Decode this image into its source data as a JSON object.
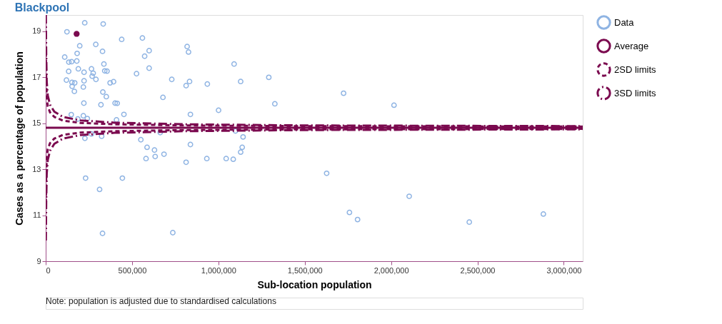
{
  "chart_data": {
    "type": "scatter",
    "title": "Blackpool",
    "xlabel": "Sub-location population",
    "ylabel": "Cases as a percentage of population",
    "annotations": [
      "Note: population is adjusted due to standardised calculations"
    ],
    "xlim": [
      0,
      3110000
    ],
    "ylim": [
      9,
      19.7
    ],
    "xticks": [
      0,
      {
        "value": 500000,
        "label": "500,000"
      },
      {
        "value": 1000000,
        "label": "1,000,000"
      },
      {
        "value": 1500000,
        "label": "1,500,000"
      },
      {
        "value": 2000000,
        "label": "2,000,000"
      },
      {
        "value": 2500000,
        "label": "2,500,000"
      },
      {
        "value": 3000000,
        "label": "3,000,000"
      }
    ],
    "yticks": [
      9,
      11,
      13,
      15,
      17,
      19
    ],
    "grid": false,
    "legend": "right",
    "series": [
      {
        "name": "Data",
        "type": "scatter",
        "marker": "circle",
        "color": "#8fb4e3",
        "x": [
          226000,
          333000,
          123000,
          440000,
          560000,
          197000,
          290000,
          329000,
          599000,
          819000,
          827000,
          182000,
          110000,
          573000,
          134000,
          150000,
          180000,
          337000,
          1091000,
          599000,
          189000,
          265000,
          133000,
          222000,
          275000,
          342000,
          355000,
          526000,
          269000,
          1292000,
          291000,
          120000,
          730000,
          222000,
          152000,
          168000,
          373000,
          393000,
          833000,
          1129000,
          936000,
          813000,
          153000,
          218000,
          166000,
          331000,
          351000,
          679000,
          221000,
          402000,
          414000,
          320000,
          1327000,
          1001000,
          148000,
          453000,
          838000,
          218000,
          241000,
          186000,
          410000,
          227000,
          265000,
          324000,
          663000,
          1099000,
          1143000,
          551000,
          838000,
          587000,
          1138000,
          630000,
          1129000,
          685000,
          634000,
          581000,
          933000,
          1045000,
          1086000,
          813000,
          1627000,
          231000,
          444000,
          312000,
          329000,
          736000,
          1725000,
          2017000,
          2105000,
          1759000,
          1806000,
          2453000,
          2882000
        ],
        "values": [
          19.36,
          19.31,
          18.97,
          18.64,
          18.7,
          18.36,
          18.42,
          18.12,
          18.15,
          18.33,
          18.09,
          18.03,
          17.87,
          17.91,
          17.65,
          17.67,
          17.7,
          17.57,
          17.57,
          17.39,
          17.36,
          17.36,
          17.25,
          17.21,
          17.17,
          17.27,
          17.26,
          17.15,
          17.04,
          16.99,
          16.9,
          16.87,
          16.9,
          16.84,
          16.77,
          16.75,
          16.75,
          16.8,
          16.81,
          16.81,
          16.7,
          16.63,
          16.6,
          16.57,
          16.38,
          16.35,
          16.15,
          16.12,
          15.87,
          15.87,
          15.86,
          15.8,
          15.84,
          15.56,
          15.37,
          15.38,
          15.38,
          15.32,
          15.2,
          15.18,
          15.14,
          14.34,
          14.53,
          14.43,
          14.59,
          14.66,
          14.4,
          14.28,
          14.07,
          13.95,
          13.95,
          13.83,
          13.74,
          13.65,
          13.55,
          13.46,
          13.46,
          13.46,
          13.43,
          13.3,
          12.82,
          12.61,
          12.61,
          12.12,
          10.21,
          10.24,
          16.3,
          15.78,
          11.82,
          11.12,
          10.81,
          10.7,
          11.05
        ]
      },
      {
        "type": "scatter",
        "marker": "circle",
        "color": "#7b0a4f",
        "x": [
          179000
        ],
        "values": [
          18.88
        ]
      },
      {
        "name": "Average",
        "type": "line",
        "color": "#7b0a4f",
        "line_style": "solid",
        "x": [
          0,
          3110000
        ],
        "values": [
          14.8,
          14.8
        ]
      },
      {
        "name": "2SD limits",
        "type": "line",
        "color": "#7b0a4f",
        "line_style": "dashed",
        "x": [
          1000,
          3000,
          6000,
          12000,
          25000,
          50000,
          100000,
          200000,
          400000,
          800000,
          1500000,
          3110000
        ],
        "values": [
          18.07,
          16.93,
          16.13,
          15.73,
          15.47,
          15.27,
          15.11,
          15.01,
          14.95,
          14.9,
          14.87,
          14.85
        ]
      },
      {
        "type": "line",
        "color": "#7b0a4f",
        "line_style": "dashed",
        "x": [
          1000,
          3000,
          6000,
          12000,
          25000,
          50000,
          100000,
          200000,
          400000,
          800000,
          1500000,
          3110000
        ],
        "values": [
          11.53,
          12.67,
          13.47,
          13.87,
          14.13,
          14.33,
          14.49,
          14.59,
          14.65,
          14.7,
          14.73,
          14.75
        ]
      },
      {
        "name": "3SD limits",
        "type": "line",
        "color": "#7b0a4f",
        "line_style": "dashdot",
        "x": [
          1000,
          3000,
          6000,
          12000,
          25000,
          50000,
          100000,
          200000,
          400000,
          800000,
          1500000,
          3110000
        ],
        "values": [
          19.7,
          18.0,
          16.8,
          16.2,
          15.8,
          15.5,
          15.27,
          15.12,
          15.02,
          14.95,
          14.9,
          14.87
        ]
      },
      {
        "type": "line",
        "color": "#7b0a4f",
        "line_style": "dashdot",
        "x": [
          1000,
          3000,
          6000,
          12000,
          25000,
          50000,
          100000,
          200000,
          400000,
          800000,
          1500000,
          3110000
        ],
        "values": [
          9.9,
          11.6,
          12.8,
          13.4,
          13.8,
          14.1,
          14.33,
          14.48,
          14.58,
          14.65,
          14.7,
          14.73
        ]
      }
    ]
  }
}
